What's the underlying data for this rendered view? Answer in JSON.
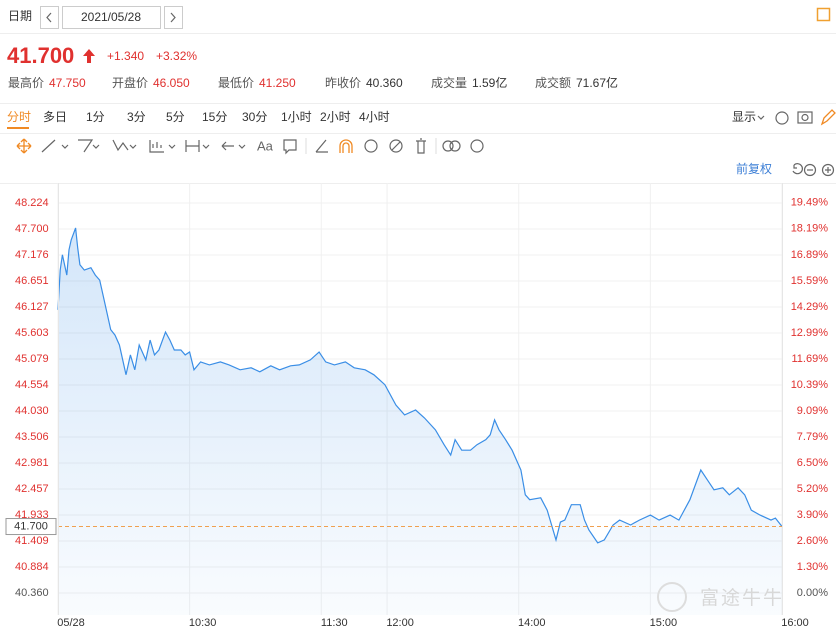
{
  "header": {
    "date_label": "日期",
    "date": "2021/05/28",
    "price": "41.700",
    "price_color": "#e0312f",
    "change": "+1.340",
    "change_pct": "+3.32%",
    "stats": [
      {
        "label": "最高价",
        "value": "47.750",
        "color": "#e0312f"
      },
      {
        "label": "开盘价",
        "value": "46.050",
        "color": "#e0312f"
      },
      {
        "label": "最低价",
        "value": "41.250",
        "color": "#e0312f"
      },
      {
        "label": "昨收价",
        "value": "40.360",
        "color": "#333333"
      },
      {
        "label": "成交量",
        "value": "1.59亿",
        "color": "#333333"
      },
      {
        "label": "成交额",
        "value": "71.67亿",
        "color": "#333333"
      }
    ]
  },
  "tabs": [
    "分时",
    "多日",
    "1分",
    "3分",
    "5分",
    "15分",
    "30分",
    "1小时",
    "2小时",
    "4小时"
  ],
  "display": "显示",
  "toolbar_text": "Aa",
  "adjust": "前复权",
  "watermark": "富途牛牛",
  "chart_data": {
    "type": "line",
    "grid": true,
    "series": [
      {
        "color": "#3a8ee6",
        "x": [
          0,
          1,
          2,
          4,
          5,
          6,
          8,
          9,
          10,
          12,
          15,
          17,
          19,
          21,
          24,
          26,
          28,
          31,
          33,
          35,
          37,
          40,
          42,
          44,
          46,
          49,
          51,
          53,
          56,
          58,
          60,
          62,
          65,
          69,
          74,
          78,
          83,
          88,
          92,
          97,
          101,
          106,
          110,
          115,
          119,
          122,
          126,
          131,
          135,
          140,
          144,
          149,
          154,
          158,
          163,
          167,
          172,
          176,
          179,
          181,
          184,
          188,
          191,
          195,
          197,
          199,
          201,
          204,
          207,
          211,
          213,
          215,
          220,
          223,
          227,
          229,
          231,
          234,
          238,
          240,
          242,
          246,
          249,
          253,
          256,
          261,
          265,
          270,
          274,
          279,
          283,
          288,
          293,
          296,
          299,
          303,
          306,
          310,
          313,
          316,
          320,
          325,
          327,
          330
        ],
        "values": [
          46.07,
          46.87,
          47.18,
          46.77,
          47.28,
          47.48,
          47.72,
          47.32,
          46.98,
          46.87,
          46.92,
          46.77,
          46.67,
          46.27,
          45.67,
          45.56,
          45.36,
          44.76,
          45.16,
          44.86,
          45.36,
          45.06,
          45.46,
          45.16,
          45.26,
          45.62,
          45.46,
          45.26,
          45.26,
          45.16,
          45.22,
          44.86,
          45.02,
          44.96,
          45.02,
          44.96,
          44.86,
          44.9,
          44.82,
          44.94,
          44.86,
          44.94,
          44.96,
          45.06,
          45.22,
          45.02,
          44.96,
          45.02,
          44.9,
          44.86,
          44.76,
          44.56,
          44.15,
          43.95,
          44.05,
          43.89,
          43.65,
          43.35,
          43.14,
          43.45,
          43.24,
          43.24,
          43.35,
          43.45,
          43.55,
          43.85,
          43.65,
          43.45,
          43.24,
          42.84,
          42.34,
          42.24,
          42.28,
          42.03,
          41.43,
          41.79,
          41.83,
          42.14,
          42.14,
          41.83,
          41.63,
          41.37,
          41.43,
          41.73,
          41.83,
          41.73,
          41.83,
          41.93,
          41.83,
          41.93,
          41.83,
          42.24,
          42.84,
          42.64,
          42.44,
          42.48,
          42.34,
          42.48,
          42.34,
          42.03,
          41.93,
          41.83,
          41.87,
          41.7
        ]
      }
    ],
    "xlim": [
      0,
      330
    ],
    "xticks": [
      {
        "value": 0,
        "label": "05/28"
      },
      {
        "value": 60,
        "label": "10:30"
      },
      {
        "value": 120,
        "label": "11:30"
      },
      {
        "value": 150,
        "label": "12:00"
      },
      {
        "value": 210,
        "label": "14:00"
      },
      {
        "value": 270,
        "label": "15:00"
      },
      {
        "value": 330,
        "label": "16:00"
      }
    ],
    "ylim": [
      39.916,
      48.627
    ],
    "yticks": [
      48.224,
      {
        "value": 47.7,
        "label": "47.700"
      },
      47.176,
      46.651,
      46.127,
      45.603,
      45.079,
      44.554,
      {
        "value": 44.03,
        "label": "44.030"
      },
      43.506,
      42.981,
      42.457,
      41.933,
      41.409,
      40.884,
      {
        "value": 40.36,
        "label": "40.360"
      }
    ],
    "y2lim": [
      -1.1,
      20.48
    ],
    "y2ticks": [
      {
        "value": 19.49,
        "label": "19.49%"
      },
      {
        "value": 18.19,
        "label": "18.19%"
      },
      {
        "value": 16.89,
        "label": "16.89%"
      },
      {
        "value": 15.59,
        "label": "15.59%"
      },
      {
        "value": 14.29,
        "label": "14.29%"
      },
      {
        "value": 12.99,
        "label": "12.99%"
      },
      {
        "value": 11.69,
        "label": "11.69%"
      },
      {
        "value": 10.39,
        "label": "10.39%"
      },
      {
        "value": 9.09,
        "label": "9.09%"
      },
      {
        "value": 7.79,
        "label": "7.79%"
      },
      {
        "value": 6.5,
        "label": "6.50%"
      },
      {
        "value": 5.2,
        "label": "5.20%"
      },
      {
        "value": 3.9,
        "label": "3.90%"
      },
      {
        "value": 2.6,
        "label": "2.60%"
      },
      {
        "value": 1.3,
        "label": "1.30%"
      },
      {
        "value": 0,
        "label": "0.00%"
      }
    ],
    "up_color": "#e0312f",
    "flat_color": "#555555",
    "current_price": {
      "value": 41.7,
      "label": "41.700"
    },
    "current_color": "#f0a050"
  }
}
